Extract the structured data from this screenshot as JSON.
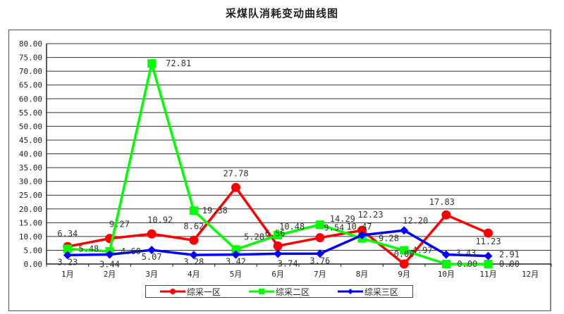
{
  "title": "采煤队消耗变动曲线图",
  "chart_data": {
    "type": "line",
    "title": "采煤队消耗变动曲线图",
    "xlabel": "",
    "ylabel": "",
    "categories": [
      "1月",
      "2月",
      "3月",
      "4月",
      "5月",
      "6月",
      "7月",
      "8月",
      "9月",
      "10月",
      "11月",
      "12月"
    ],
    "ylim": [
      0,
      80
    ],
    "yticks": [
      "0.00",
      "5.00",
      "10.00",
      "15.00",
      "20.00",
      "25.00",
      "30.00",
      "35.00",
      "40.00",
      "45.00",
      "50.00",
      "55.00",
      "60.00",
      "65.00",
      "70.00",
      "75.00",
      "80.00"
    ],
    "grid": true,
    "legend_position": "bottom",
    "series": [
      {
        "name": "综采一区",
        "color": "#ff0000",
        "marker": "circle",
        "values": [
          6.34,
          9.27,
          10.92,
          8.62,
          27.78,
          6.56,
          9.54,
          12.23,
          0.0,
          17.83,
          11.23
        ],
        "labels": [
          "6.34",
          "9.27",
          "10.92",
          "8.62",
          "27.78",
          "6.56",
          "9.54",
          "12.23",
          "0.00",
          "17.83",
          "11.23"
        ]
      },
      {
        "name": "综采二区",
        "color": "#00ff00",
        "marker": "square",
        "values": [
          5.48,
          4.6,
          72.81,
          19.38,
          5.28,
          10.48,
          14.29,
          9.28,
          4.97,
          0.0,
          0.0
        ],
        "labels": [
          "5.48",
          "4.60",
          "72.81",
          "19.38",
          "5.28",
          "10.48",
          "14.29",
          "9.28",
          "4.97",
          "0.00",
          "0.00"
        ]
      },
      {
        "name": "综采三区",
        "color": "#0000ff",
        "marker": "diamond",
        "values": [
          3.23,
          3.44,
          5.07,
          3.28,
          3.42,
          3.74,
          3.76,
          10.47,
          12.2,
          3.43,
          2.91
        ],
        "labels": [
          "3.23",
          "3.44",
          "5.07",
          "3.28",
          "3.42",
          "3.74",
          "3.76",
          "10.47",
          "12.20",
          "3.43",
          "2.91"
        ]
      }
    ]
  },
  "legend": {
    "items": [
      {
        "label": "综采一区",
        "color": "#ff0000"
      },
      {
        "label": "综采二区",
        "color": "#00ff00"
      },
      {
        "label": "综采三区",
        "color": "#0000ff"
      }
    ]
  }
}
